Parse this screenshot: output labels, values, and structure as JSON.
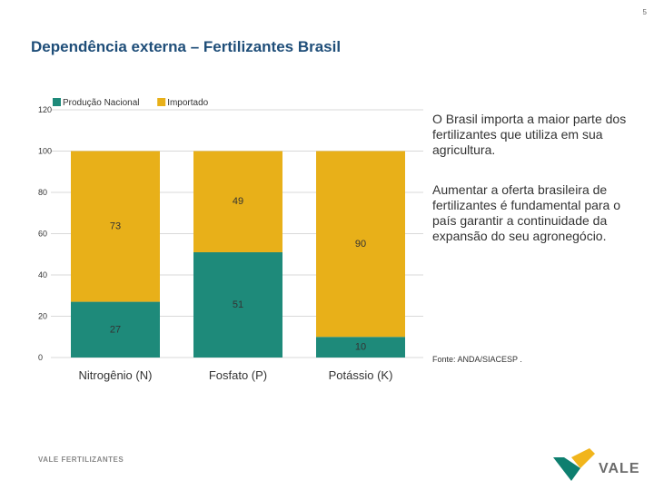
{
  "page": {
    "number": "5",
    "title": "Dependência externa – Fertilizantes Brasil",
    "text_1": "O Brasil importa a maior parte dos fertilizantes que utiliza em sua agricultura.",
    "text_2": "Aumentar a oferta brasileira de fertilizantes é fundamental para o país garantir a continuidade da expansão do seu agronegócio.",
    "source": "Fonte: ANDA/SIACESP .",
    "footer_left": "VALE FERTILIZANTES",
    "logo_text": "VALE"
  },
  "colors": {
    "green": "#1e8a7a",
    "yellow": "#e8b019",
    "grid": "#d9d9d9",
    "axis_text": "#333333",
    "logo_green": "#0e7f6f",
    "logo_yellow": "#f1b51c"
  },
  "chart_data": {
    "type": "bar",
    "stacked": true,
    "categories": [
      "Nitrogênio (N)",
      "Fosfato (P)",
      "Potássio (K)"
    ],
    "series": [
      {
        "name": "Produção Nacional",
        "color": "#1e8a7a",
        "values": [
          27,
          51,
          10
        ]
      },
      {
        "name": "Importado",
        "color": "#e8b019",
        "values": [
          73,
          49,
          90
        ]
      }
    ],
    "y_ticks": [
      "0",
      "20",
      "40",
      "60",
      "80",
      "100",
      "120"
    ],
    "ylim": [
      0,
      120
    ],
    "legend": "top-left"
  }
}
